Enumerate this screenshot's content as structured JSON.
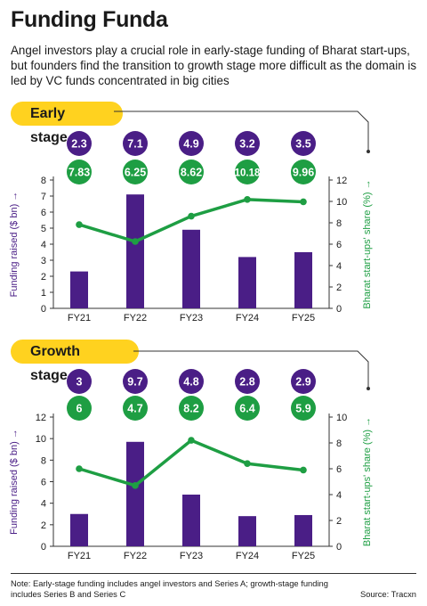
{
  "title": "Funding Funda",
  "subtitle": "Angel investors play a crucial role in early-stage funding of Bharat start-ups, but founders find the transition to growth stage more difficult as the domain is led by VC funds concentrated in big cities",
  "note": "Note: Early-stage funding includes angel investors and Series A; growth-stage funding includes Series B and Series C",
  "source": "Source: Tracxn",
  "colors": {
    "bar": "#4a1e86",
    "line": "#1e9e43",
    "pill": "#ffd21f",
    "axis_left": "#4a1e86",
    "axis_right": "#1e9e43"
  },
  "chart_data": [
    {
      "type": "bar",
      "title": "Early stage",
      "categories": [
        "FY21",
        "FY22",
        "FY23",
        "FY24",
        "FY25"
      ],
      "ylabel": "Funding raised ($ bn)",
      "ylim": [
        0,
        8
      ],
      "yticks": [
        0,
        1,
        2,
        3,
        4,
        5,
        6,
        7,
        8
      ],
      "y2label": "Bharat start-ups' share (%)",
      "y2lim": [
        0,
        12
      ],
      "y2ticks": [
        0,
        2,
        4,
        6,
        8,
        10,
        12
      ],
      "grid": false,
      "series": [
        {
          "kind": "bar",
          "axis": "left",
          "values": [
            2.3,
            7.1,
            4.9,
            3.2,
            3.5
          ],
          "labels": [
            "2.3",
            "7.1",
            "4.9",
            "3.2",
            "3.5"
          ]
        },
        {
          "kind": "line",
          "axis": "right",
          "values": [
            7.83,
            6.25,
            8.62,
            10.18,
            9.96
          ],
          "labels": [
            "7.83",
            "6.25",
            "8.62",
            "10.18",
            "9.96"
          ]
        }
      ]
    },
    {
      "type": "bar",
      "title": "Growth stage",
      "categories": [
        "FY21",
        "FY22",
        "FY23",
        "FY24",
        "FY25"
      ],
      "ylabel": "Funding raised ($ bn)",
      "ylim": [
        0,
        12
      ],
      "yticks": [
        0,
        2,
        4,
        6,
        8,
        10,
        12
      ],
      "y2label": "Bharat start-ups' share (%)",
      "y2lim": [
        0,
        10
      ],
      "y2ticks": [
        0,
        2,
        4,
        6,
        8,
        10
      ],
      "grid": false,
      "series": [
        {
          "kind": "bar",
          "axis": "left",
          "values": [
            3,
            9.7,
            4.8,
            2.8,
            2.9
          ],
          "labels": [
            "3",
            "9.7",
            "4.8",
            "2.8",
            "2.9"
          ]
        },
        {
          "kind": "line",
          "axis": "right",
          "values": [
            6,
            4.7,
            8.2,
            6.4,
            5.9
          ],
          "labels": [
            "6",
            "4.7",
            "8.2",
            "6.4",
            "5.9"
          ]
        }
      ]
    }
  ]
}
